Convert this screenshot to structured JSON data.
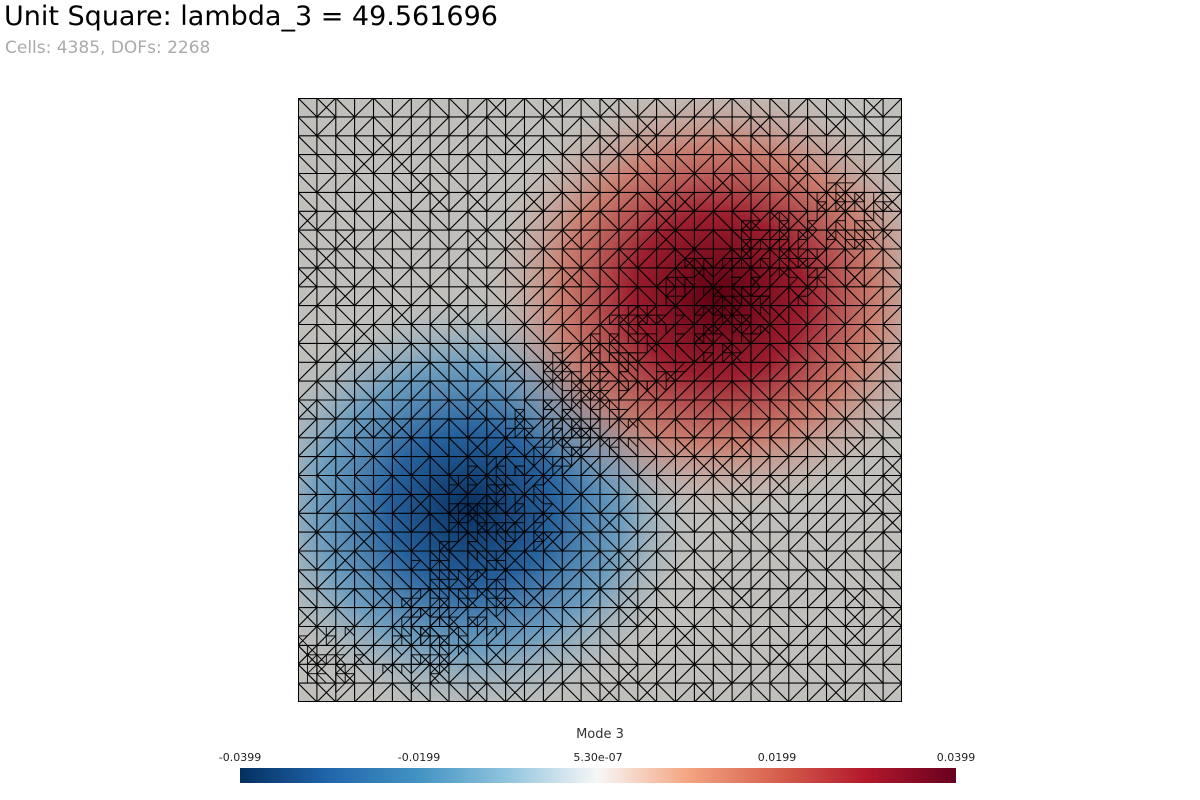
{
  "header": {
    "title": "Unit Square: lambda_3 = 49.561696",
    "subtitle": "Cells: 4385, DOFs: 2268"
  },
  "colorbar": {
    "title": "Mode 3",
    "ticks": [
      "-0.0399",
      "-0.0199",
      "5.30e-07",
      "0.0199",
      "0.0399"
    ],
    "colors": [
      "#053061",
      "#2166ac",
      "#4393c3",
      "#92c5de",
      "#f7f7f7",
      "#f4a582",
      "#d6604d",
      "#b2182b",
      "#67001f"
    ]
  },
  "field": {
    "description_colors": {
      "background": "#c0bfbb",
      "mesh": "#000000"
    }
  }
}
